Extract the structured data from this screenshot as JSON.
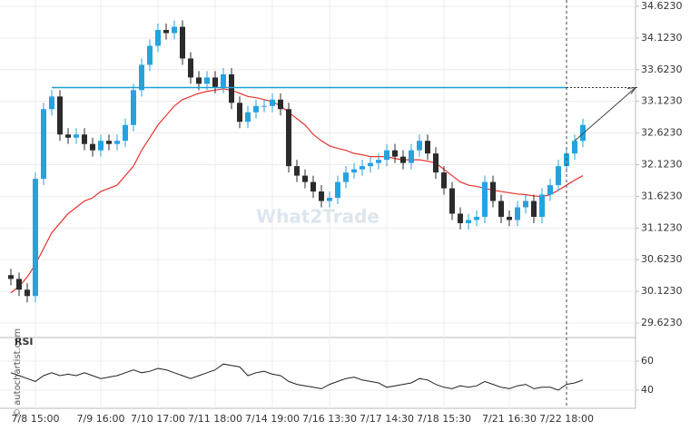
{
  "watermark": "What2Trade",
  "credit": "© autochartist.com",
  "chart_data": [
    {
      "type": "candlestick",
      "categories": [
        null,
        null,
        null,
        "7/8 15:00",
        null,
        null,
        null,
        null,
        null,
        null,
        null,
        "7/9 16:00",
        null,
        null,
        null,
        null,
        null,
        null,
        "7/10 17:00",
        null,
        null,
        null,
        null,
        null,
        null,
        "7/11 18:00",
        null,
        null,
        null,
        null,
        null,
        null,
        "7/14 19:00",
        null,
        null,
        null,
        null,
        null,
        null,
        "7/16 13:30",
        null,
        null,
        null,
        null,
        null,
        null,
        "7/17 14:30",
        null,
        null,
        null,
        null,
        null,
        null,
        "7/18 15:30",
        null,
        null,
        null,
        null,
        null,
        null,
        null,
        "7/21 16:30",
        null,
        null,
        null,
        null,
        null,
        null,
        "7/22 18:00",
        null,
        null
      ],
      "open": [
        30.38,
        30.32,
        30.15,
        30.05,
        31.9,
        33.0,
        33.2,
        32.6,
        32.55,
        32.6,
        32.45,
        32.35,
        32.5,
        32.45,
        32.5,
        32.75,
        33.3,
        33.7,
        34.0,
        34.25,
        34.2,
        34.3,
        33.8,
        33.5,
        33.4,
        33.5,
        33.35,
        33.55,
        33.1,
        32.8,
        32.95,
        33.05,
        33.05,
        33.15,
        33.0,
        32.1,
        31.95,
        31.85,
        31.7,
        31.55,
        31.6,
        31.85,
        32.0,
        32.05,
        32.1,
        32.15,
        32.2,
        32.35,
        32.25,
        32.15,
        32.35,
        32.5,
        32.3,
        32.0,
        31.75,
        31.35,
        31.2,
        31.25,
        31.3,
        31.85,
        31.55,
        31.3,
        31.25,
        31.45,
        31.55,
        31.3,
        31.65,
        31.8,
        32.1,
        32.3,
        32.5
      ],
      "high": [
        30.48,
        30.42,
        30.25,
        32.0,
        33.1,
        33.3,
        33.3,
        32.7,
        32.7,
        32.7,
        32.55,
        32.6,
        32.6,
        32.6,
        32.85,
        33.4,
        33.8,
        34.1,
        34.35,
        34.35,
        34.4,
        34.4,
        33.9,
        33.6,
        33.6,
        33.6,
        33.65,
        33.65,
        33.2,
        33.05,
        33.15,
        33.15,
        33.25,
        33.25,
        33.1,
        32.2,
        32.05,
        31.95,
        31.8,
        31.7,
        31.95,
        32.1,
        32.15,
        32.2,
        32.25,
        32.3,
        32.45,
        32.45,
        32.35,
        32.45,
        32.6,
        32.6,
        32.4,
        32.1,
        31.85,
        31.45,
        31.35,
        31.4,
        31.95,
        31.95,
        31.65,
        31.4,
        31.55,
        31.65,
        31.65,
        31.75,
        31.9,
        32.2,
        32.4,
        32.6,
        32.85
      ],
      "low": [
        30.22,
        30.05,
        29.95,
        29.95,
        31.8,
        32.9,
        32.5,
        32.45,
        32.45,
        32.35,
        32.25,
        32.25,
        32.35,
        32.35,
        32.4,
        32.65,
        33.2,
        33.6,
        33.9,
        34.1,
        34.1,
        33.7,
        33.4,
        33.3,
        33.3,
        33.25,
        33.25,
        33.0,
        32.7,
        32.7,
        32.85,
        32.95,
        32.95,
        32.9,
        32.0,
        31.85,
        31.75,
        31.6,
        31.45,
        31.45,
        31.5,
        31.75,
        31.9,
        31.95,
        32.0,
        32.05,
        32.1,
        32.15,
        32.05,
        32.05,
        32.25,
        32.2,
        31.9,
        31.65,
        31.25,
        31.1,
        31.1,
        31.15,
        31.2,
        31.45,
        31.2,
        31.15,
        31.15,
        31.35,
        31.2,
        31.2,
        31.55,
        31.7,
        32.0,
        32.2,
        32.4
      ],
      "close": [
        30.32,
        30.15,
        30.05,
        31.9,
        33.0,
        33.2,
        32.6,
        32.55,
        32.6,
        32.45,
        32.35,
        32.5,
        32.45,
        32.5,
        32.75,
        33.3,
        33.7,
        34.0,
        34.25,
        34.2,
        34.3,
        33.8,
        33.5,
        33.4,
        33.5,
        33.35,
        33.55,
        33.1,
        32.8,
        32.95,
        33.05,
        33.05,
        33.15,
        33.0,
        32.1,
        31.95,
        31.85,
        31.7,
        31.55,
        31.6,
        31.85,
        32.0,
        32.05,
        32.1,
        32.15,
        32.2,
        32.35,
        32.25,
        32.15,
        32.35,
        32.5,
        32.3,
        32.0,
        31.75,
        31.35,
        31.2,
        31.25,
        31.3,
        31.85,
        31.55,
        31.3,
        31.25,
        31.45,
        31.55,
        31.3,
        31.65,
        31.8,
        32.1,
        32.3,
        32.5,
        32.75
      ],
      "moving_average": {
        "color": "#e8322e",
        "values": [
          30.1,
          30.2,
          30.35,
          30.55,
          30.8,
          31.05,
          31.2,
          31.35,
          31.45,
          31.55,
          31.6,
          31.7,
          31.75,
          31.8,
          31.95,
          32.1,
          32.35,
          32.55,
          32.75,
          32.9,
          33.05,
          33.15,
          33.2,
          33.25,
          33.28,
          33.3,
          33.32,
          33.3,
          33.25,
          33.2,
          33.18,
          33.15,
          33.12,
          33.05,
          32.95,
          32.85,
          32.75,
          32.6,
          32.5,
          32.42,
          32.38,
          32.35,
          32.3,
          32.28,
          32.25,
          32.25,
          32.25,
          32.22,
          32.2,
          32.2,
          32.2,
          32.18,
          32.15,
          32.05,
          31.95,
          31.85,
          31.8,
          31.78,
          31.75,
          31.72,
          31.7,
          31.68,
          31.66,
          31.65,
          31.63,
          31.62,
          31.65,
          31.72,
          31.8,
          31.88,
          31.95
        ]
      },
      "level": 33.34,
      "level_color": "#1e9fd6",
      "up_color": "#27a2e0",
      "down_color": "#2b2b2b",
      "ylim": [
        29.423,
        34.723
      ],
      "yticks": [
        {
          "value": 29.623,
          "label": "29.6230"
        },
        {
          "value": 30.123,
          "label": "30.1230"
        },
        {
          "value": 30.623,
          "label": "30.6230"
        },
        {
          "value": 31.123,
          "label": "31.1230"
        },
        {
          "value": 31.623,
          "label": "31.6230"
        },
        {
          "value": 32.123,
          "label": "32.1230"
        },
        {
          "value": 32.623,
          "label": "32.6230"
        },
        {
          "value": 33.123,
          "label": "33.1230"
        },
        {
          "value": 33.623,
          "label": "33.6230"
        },
        {
          "value": 34.123,
          "label": "34.1230"
        },
        {
          "value": 34.623,
          "label": "34.6230"
        }
      ],
      "grid": true
    },
    {
      "type": "line",
      "title": "RSI",
      "color": "#222222",
      "values": [
        52,
        50,
        48,
        46,
        50,
        52,
        50,
        51,
        50,
        52,
        50,
        48,
        49,
        50,
        52,
        54,
        52,
        53,
        55,
        54,
        52,
        50,
        48,
        50,
        52,
        54,
        58,
        57,
        56,
        50,
        52,
        53,
        51,
        50,
        46,
        44,
        43,
        42,
        41,
        44,
        46,
        48,
        49,
        47,
        46,
        45,
        42,
        43,
        44,
        45,
        48,
        47,
        44,
        42,
        41,
        43,
        42,
        43,
        46,
        44,
        42,
        41,
        43,
        44,
        41,
        42,
        42,
        40,
        44,
        45,
        47
      ],
      "ylim": [
        27.5,
        71.25
      ],
      "yticks": [
        40,
        60
      ],
      "grid": true
    }
  ]
}
